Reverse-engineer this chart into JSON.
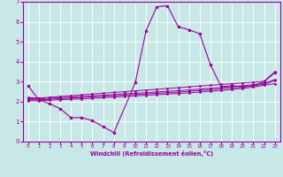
{
  "background_color": "#c8e8e8",
  "line_color": "#990099",
  "grid_color": "#ffffff",
  "xlabel": "Windchill (Refroidissement éolien,°C)",
  "xlim": [
    -0.5,
    23.5
  ],
  "ylim": [
    0,
    7
  ],
  "xticks": [
    0,
    1,
    2,
    3,
    4,
    5,
    6,
    7,
    8,
    9,
    10,
    11,
    12,
    13,
    14,
    15,
    16,
    17,
    18,
    19,
    20,
    21,
    22,
    23
  ],
  "yticks": [
    0,
    1,
    2,
    3,
    4,
    5,
    6,
    7
  ],
  "main_curve": {
    "x": [
      0,
      1,
      2,
      3,
      4,
      5,
      6,
      7,
      8,
      10,
      11,
      12,
      13,
      14,
      15,
      16,
      17,
      18,
      19,
      20,
      21,
      22,
      23
    ],
    "y": [
      2.8,
      2.1,
      1.9,
      1.65,
      1.2,
      1.2,
      1.05,
      0.75,
      0.45,
      2.95,
      5.55,
      6.75,
      6.8,
      5.75,
      5.6,
      5.4,
      3.85,
      2.75,
      2.8,
      2.75,
      2.8,
      3.0,
      3.45
    ]
  },
  "trend_lines": [
    {
      "x": [
        0,
        1,
        2,
        3,
        4,
        5,
        6,
        7,
        8,
        9,
        10,
        11,
        12,
        13,
        14,
        15,
        16,
        17,
        18,
        19,
        20,
        21,
        22,
        23
      ],
      "y": [
        2.2,
        2.18,
        2.22,
        2.26,
        2.3,
        2.34,
        2.38,
        2.42,
        2.46,
        2.5,
        2.54,
        2.58,
        2.62,
        2.66,
        2.7,
        2.74,
        2.78,
        2.82,
        2.86,
        2.9,
        2.94,
        2.97,
        3.02,
        3.5
      ]
    },
    {
      "x": [
        0,
        1,
        2,
        3,
        4,
        5,
        6,
        7,
        8,
        9,
        10,
        11,
        12,
        13,
        14,
        15,
        16,
        17,
        18,
        19,
        20,
        21,
        22,
        23
      ],
      "y": [
        2.15,
        2.14,
        2.17,
        2.2,
        2.23,
        2.26,
        2.29,
        2.32,
        2.36,
        2.39,
        2.42,
        2.45,
        2.49,
        2.52,
        2.55,
        2.59,
        2.63,
        2.67,
        2.71,
        2.75,
        2.79,
        2.85,
        2.92,
        3.1
      ]
    },
    {
      "x": [
        0,
        1,
        2,
        3,
        4,
        5,
        6,
        7,
        8,
        9,
        10,
        11,
        12,
        13,
        14,
        15,
        16,
        17,
        18,
        19,
        20,
        21,
        22,
        23
      ],
      "y": [
        2.1,
        2.09,
        2.12,
        2.15,
        2.18,
        2.21,
        2.24,
        2.27,
        2.3,
        2.33,
        2.36,
        2.39,
        2.42,
        2.45,
        2.48,
        2.52,
        2.56,
        2.6,
        2.64,
        2.68,
        2.73,
        2.79,
        2.87,
        3.05
      ]
    },
    {
      "x": [
        0,
        1,
        2,
        3,
        4,
        5,
        6,
        7,
        8,
        9,
        10,
        11,
        12,
        13,
        14,
        15,
        16,
        17,
        18,
        19,
        20,
        21,
        22,
        23
      ],
      "y": [
        2.05,
        2.04,
        2.07,
        2.1,
        2.12,
        2.14,
        2.17,
        2.2,
        2.23,
        2.26,
        2.29,
        2.32,
        2.35,
        2.38,
        2.41,
        2.44,
        2.48,
        2.52,
        2.56,
        2.61,
        2.66,
        2.73,
        2.82,
        2.9
      ]
    }
  ]
}
